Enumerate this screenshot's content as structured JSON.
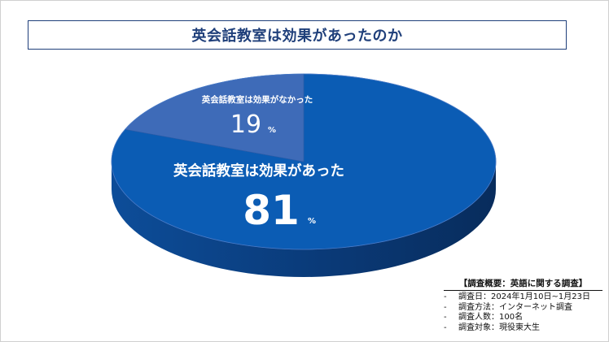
{
  "title": "英会話教室は効果があったのか",
  "chart_data": {
    "type": "pie",
    "categories": [
      "英会話教室は効果があった",
      "英会話教室は効果がなかった"
    ],
    "values": [
      81,
      19
    ],
    "unit": "%",
    "colors": [
      "#0b5cb4",
      "#3e6bb8"
    ],
    "side_color": "#0a3a78"
  },
  "notes": {
    "title": "【調査概要：英語に関する調査】",
    "items": [
      "調査日：2024年1月10日~1月23日",
      "調査方法：インターネット調査",
      "調査人数：100名",
      "調査対象：現役東大生"
    ]
  }
}
